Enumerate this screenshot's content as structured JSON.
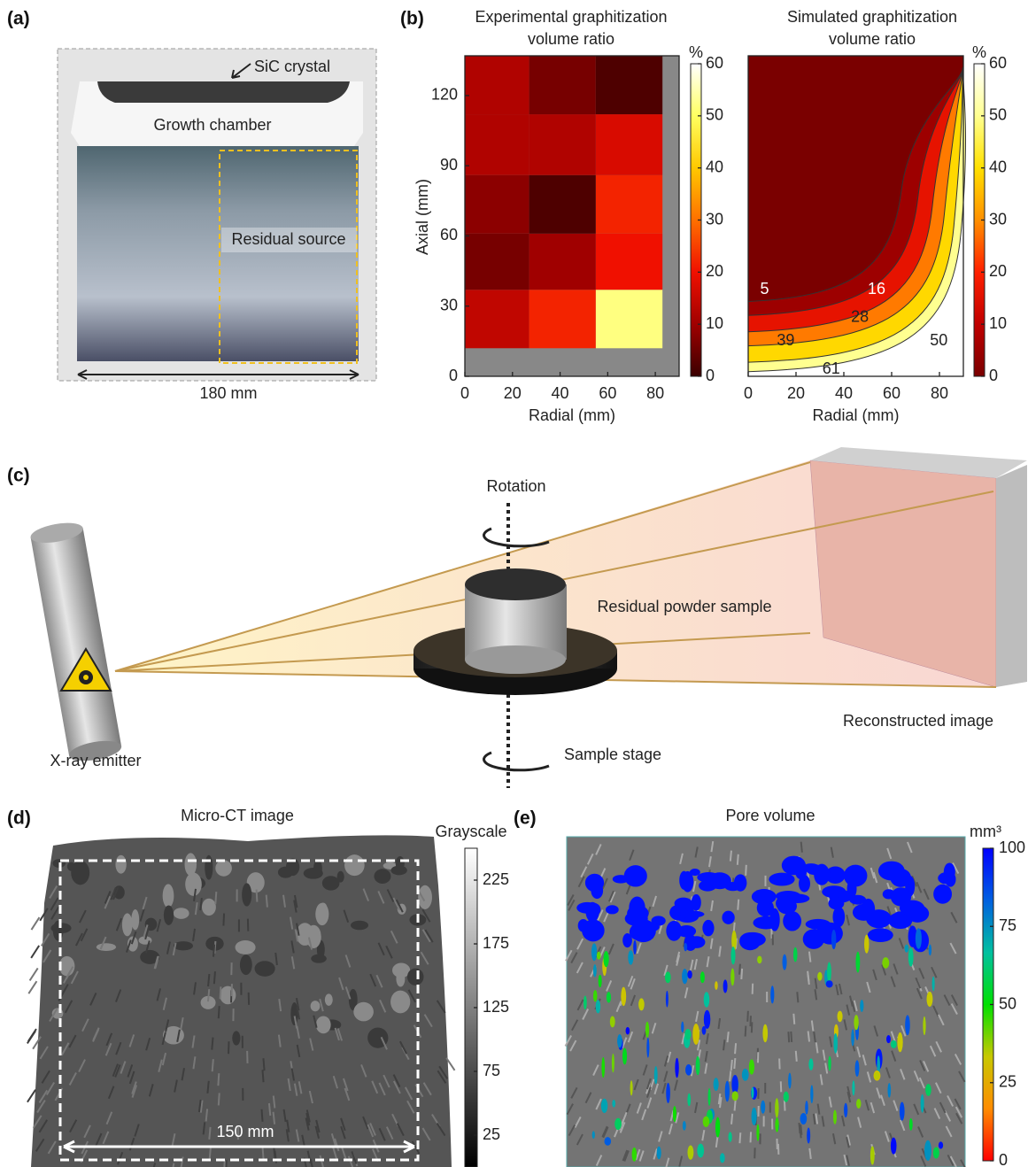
{
  "panels": {
    "a": {
      "label": "(a)",
      "crystal": "SiC crystal",
      "chamber": "Growth chamber",
      "source": "Residual source",
      "width": "180 mm"
    },
    "b": {
      "label": "(b)"
    },
    "c": {
      "label": "(c)",
      "rotation": "Rotation",
      "sample": "Residual powder sample",
      "reconstructed": "Reconstructed image",
      "emitter": "X-ray emitter",
      "stage": "Sample stage"
    },
    "d": {
      "label": "(d)",
      "title": "Micro-CT image",
      "scale": "150 mm",
      "colorbar": {
        "title": "Grayscale",
        "lim": [
          0,
          250
        ],
        "ticks": [
          25,
          75,
          125,
          175,
          225
        ]
      }
    },
    "e": {
      "label": "(e)",
      "title": "Pore volume",
      "colorbar": {
        "title": "mm³",
        "lim": [
          0,
          100
        ],
        "ticks": [
          0,
          25,
          50,
          75,
          100
        ],
        "colormap": [
          "#ff0000",
          "#ff8c00",
          "#c8c800",
          "#00e000",
          "#00c0a0",
          "#0060e0",
          "#0000ff"
        ]
      }
    }
  },
  "chart_data": [
    {
      "type": "heatmap",
      "title": [
        "Experimental graphitization",
        "volume ratio"
      ],
      "x_label": "Radial (mm)",
      "y_label": "Axial (mm)",
      "xlim": [
        0,
        90
      ],
      "ylim": [
        0,
        137
      ],
      "xticks": [
        0,
        20,
        40,
        60,
        80
      ],
      "yticks": [
        0,
        30,
        60,
        90,
        120
      ],
      "x_edges": [
        0,
        27,
        55,
        83
      ],
      "y_edges": [
        12,
        37,
        61,
        86,
        112,
        137
      ],
      "values": [
        [
          14,
          22,
          52
        ],
        [
          6,
          10,
          20
        ],
        [
          8,
          2,
          22
        ],
        [
          12,
          12,
          17
        ],
        [
          12,
          6,
          2
        ]
      ],
      "colormap": [
        "#3a0000",
        "#a00000",
        "#f01000",
        "#ff7000",
        "#ffc800",
        "#ffff60",
        "#ffffff"
      ],
      "colorbar": {
        "title": "%",
        "lim": [
          0,
          60
        ],
        "ticks": [
          0,
          10,
          20,
          30,
          40,
          50,
          60
        ]
      }
    },
    {
      "type": "contour",
      "title": [
        "Simulated graphitization",
        "volume ratio"
      ],
      "x_label": "Radial (mm)",
      "xlim": [
        0,
        90
      ],
      "ylim": [
        0,
        137
      ],
      "xticks": [
        0,
        20,
        40,
        60,
        80
      ],
      "levels": [
        5,
        16,
        28,
        39,
        50,
        61
      ],
      "colormap": [
        "#7a0000",
        "#c00000",
        "#ff2000",
        "#ff9000",
        "#ffe000",
        "#ffff90",
        "#ffffff"
      ],
      "colorbar": {
        "title": "%",
        "lim": [
          0,
          60
        ],
        "ticks": [
          0,
          10,
          20,
          30,
          40,
          50,
          60
        ]
      }
    }
  ]
}
